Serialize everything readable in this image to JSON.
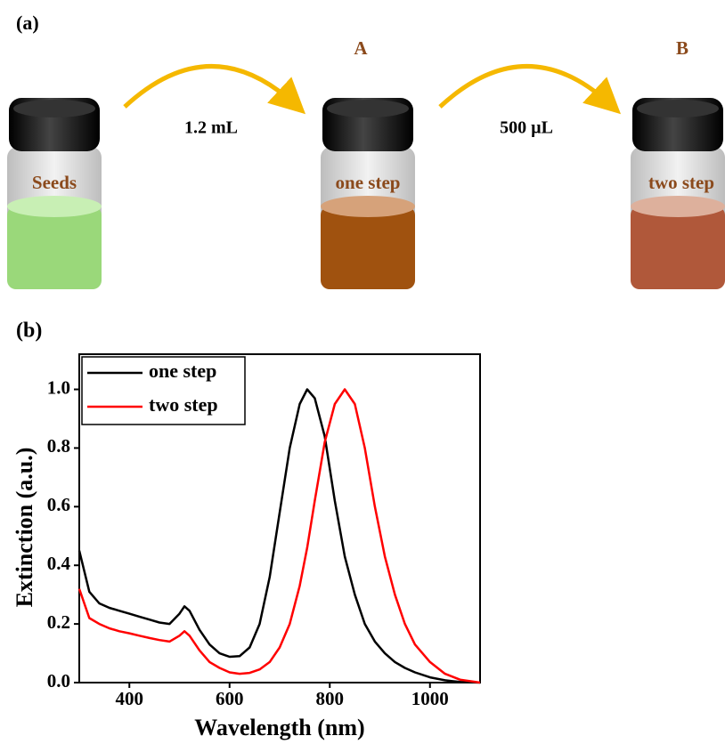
{
  "panel_a": {
    "label": "(a)",
    "vials": [
      {
        "label": "Seeds"
      },
      {
        "tag": "A",
        "label": "one step"
      },
      {
        "tag": "B",
        "label": "two step"
      }
    ],
    "arrows": [
      {
        "label": "1.2 mL"
      },
      {
        "label": "500 µL"
      }
    ]
  },
  "panel_b": {
    "label": "(b)"
  },
  "chart_data": {
    "type": "line",
    "x_label": "Wavelength (nm)",
    "y_label": "Extinction (a.u.)",
    "x": [
      300,
      320,
      340,
      360,
      380,
      400,
      420,
      440,
      460,
      480,
      500,
      510,
      520,
      540,
      560,
      580,
      600,
      620,
      640,
      660,
      680,
      700,
      720,
      740,
      755,
      770,
      790,
      810,
      830,
      850,
      870,
      890,
      910,
      930,
      950,
      970,
      1000,
      1030,
      1060,
      1100
    ],
    "series": [
      {
        "name": "one step",
        "color": "#000000",
        "values": [
          0.45,
          0.31,
          0.27,
          0.255,
          0.245,
          0.235,
          0.225,
          0.215,
          0.205,
          0.2,
          0.235,
          0.26,
          0.245,
          0.18,
          0.13,
          0.1,
          0.088,
          0.09,
          0.12,
          0.2,
          0.36,
          0.58,
          0.8,
          0.95,
          1.0,
          0.97,
          0.84,
          0.62,
          0.43,
          0.3,
          0.2,
          0.14,
          0.1,
          0.07,
          0.05,
          0.035,
          0.018,
          0.008,
          0.002,
          0
        ]
      },
      {
        "name": "two step",
        "color": "#ff0000",
        "values": [
          0.32,
          0.22,
          0.2,
          0.185,
          0.175,
          0.168,
          0.16,
          0.152,
          0.145,
          0.14,
          0.16,
          0.175,
          0.16,
          0.11,
          0.07,
          0.05,
          0.035,
          0.03,
          0.033,
          0.045,
          0.07,
          0.12,
          0.2,
          0.33,
          0.46,
          0.62,
          0.82,
          0.95,
          1.0,
          0.95,
          0.8,
          0.6,
          0.43,
          0.3,
          0.2,
          0.13,
          0.07,
          0.03,
          0.01,
          0
        ]
      }
    ],
    "xlim": [
      300,
      1100
    ],
    "xticks": [
      400,
      600,
      800,
      1000
    ],
    "ylim": [
      0,
      1.12
    ],
    "yticks": [
      {
        "value": 0,
        "label": "0.0"
      },
      0.2,
      0.4,
      0.6,
      0.8,
      {
        "value": 1,
        "label": "1.0"
      }
    ],
    "legend": "upper left"
  }
}
